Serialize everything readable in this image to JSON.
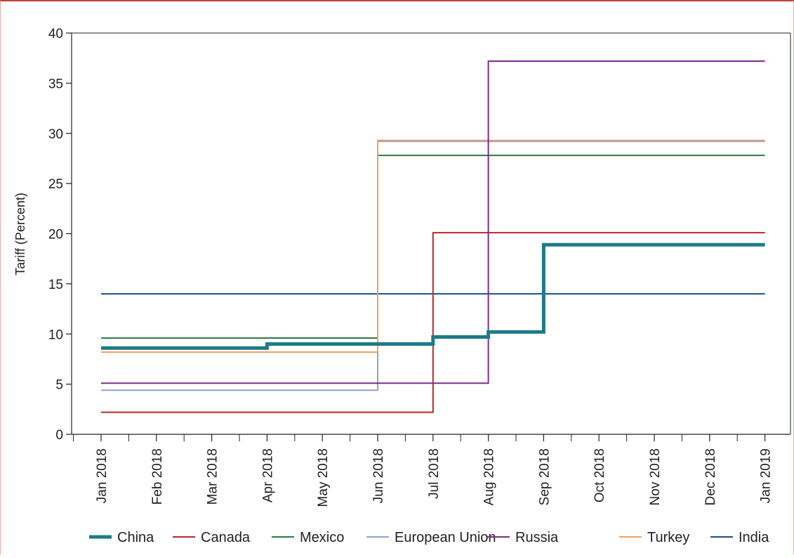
{
  "chart_data": {
    "type": "line",
    "step": true,
    "title": "",
    "xlabel": "",
    "ylabel": "Tariff (Percent)",
    "ylim": [
      0,
      40
    ],
    "yticks": [
      0,
      5,
      10,
      15,
      20,
      25,
      30,
      35,
      40
    ],
    "x_ticks": [
      "Jan 2018",
      "Feb 2018",
      "Mar 2018",
      "Apr 2018",
      "May 2018",
      "Jun 2018",
      "Jul 2018",
      "Aug 2018",
      "Sep 2018",
      "Oct 2018",
      "Nov 2018",
      "Dec 2018",
      "Jan 2019"
    ],
    "grid": false,
    "legend": "bottom",
    "series": [
      {
        "name": "India",
        "color": "#1f4e8c",
        "width": 2,
        "x": [
          "Jan 2018",
          "Jan 2019"
        ],
        "y": [
          14.0,
          14.0
        ]
      },
      {
        "name": "Mexico",
        "color": "#2a7a45",
        "width": 2,
        "x": [
          "Jan 2018",
          "Jun 2018",
          "Jan 2019"
        ],
        "y": [
          9.6,
          27.8,
          27.8
        ]
      },
      {
        "name": "European Union",
        "color": "#8fa2d4",
        "width": 2,
        "x": [
          "Jan 2018",
          "Jun 2018",
          "Jan 2019"
        ],
        "y": [
          4.4,
          29.2,
          29.2
        ]
      },
      {
        "name": "Turkey",
        "color": "#f0a060",
        "width": 2,
        "x": [
          "Jan 2018",
          "Jun 2018",
          "Jan 2019"
        ],
        "y": [
          8.2,
          29.3,
          29.3
        ]
      },
      {
        "name": "Canada",
        "color": "#b52a2a",
        "width": 2,
        "x": [
          "Jan 2018",
          "Jul 2018",
          "Jan 2019"
        ],
        "y": [
          2.2,
          20.1,
          20.1
        ]
      },
      {
        "name": "Russia",
        "color": "#7b2d8e",
        "width": 2,
        "x": [
          "Jan 2018",
          "Aug 2018",
          "Jan 2019"
        ],
        "y": [
          5.1,
          37.2,
          37.2
        ]
      },
      {
        "name": "China",
        "color": "#1e7a88",
        "width": 5,
        "x": [
          "Jan 2018",
          "Apr 2018",
          "Jul 2018",
          "Aug 2018",
          "Sep 2018",
          "Jan 2019"
        ],
        "y": [
          8.6,
          9.0,
          9.7,
          10.2,
          18.9,
          18.9
        ]
      }
    ],
    "legend_order": [
      "China",
      "Canada",
      "Mexico",
      "European Union",
      "Russia",
      "Turkey",
      "India"
    ]
  }
}
